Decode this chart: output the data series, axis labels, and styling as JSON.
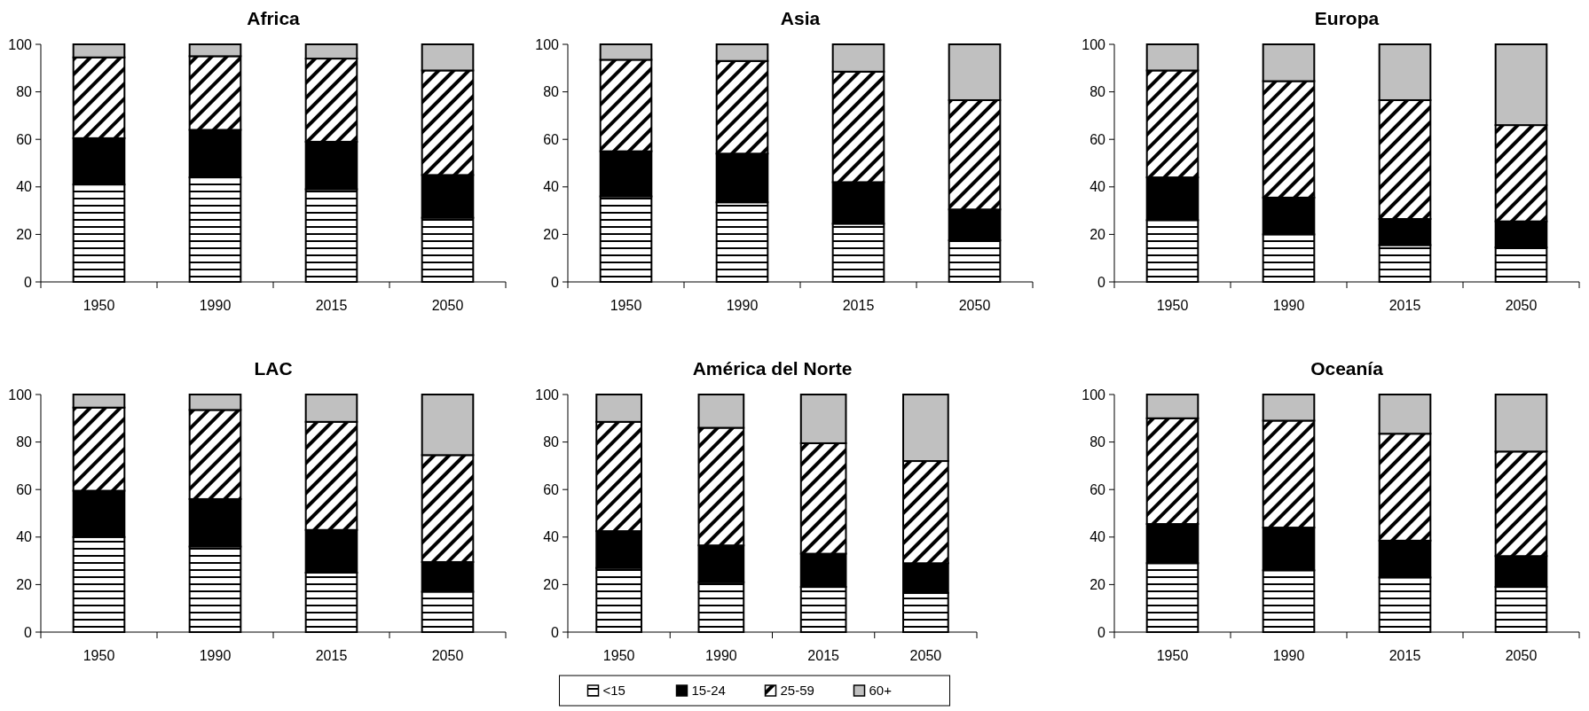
{
  "chart_data": [
    {
      "type": "bar",
      "title": "Africa",
      "stacked": true,
      "legend": "bottom",
      "categories": [
        "1950",
        "1990",
        "2015",
        "2050"
      ],
      "ylim": [
        0,
        100
      ],
      "yticks": [
        0,
        20,
        40,
        60,
        80,
        100
      ],
      "series": [
        {
          "name": "<15",
          "color": "#000000",
          "values": [
            41,
            44,
            39,
            27
          ]
        },
        {
          "name": "15-24",
          "color": "#000000",
          "values": [
            19.5,
            20,
            20,
            18
          ]
        },
        {
          "name": "25-59",
          "color": "#000000",
          "values": [
            34,
            31,
            35,
            44
          ]
        },
        {
          "name": "60+",
          "color": "#c0c0c0",
          "values": [
            5.5,
            5,
            6,
            11
          ]
        }
      ]
    },
    {
      "type": "bar",
      "title": "Asia",
      "stacked": true,
      "categories": [
        "1950",
        "1990",
        "2015",
        "2050"
      ],
      "ylim": [
        0,
        100
      ],
      "yticks": [
        0,
        20,
        40,
        60,
        80,
        100
      ],
      "series": [
        {
          "color": "#000000",
          "values": [
            36,
            33.5,
            24.5,
            17.5
          ]
        },
        {
          "color": "#000000",
          "values": [
            19,
            20.5,
            17.5,
            13
          ]
        },
        {
          "color": "#000000",
          "values": [
            38.5,
            39,
            46.5,
            46
          ]
        },
        {
          "color": "#c0c0c0",
          "values": [
            6.5,
            7,
            11.5,
            23.5
          ]
        }
      ]
    },
    {
      "type": "bar",
      "title": "Europa",
      "stacked": true,
      "categories": [
        "1950",
        "1990",
        "2015",
        "2050"
      ],
      "ylim": [
        0,
        100
      ],
      "yticks": [
        0,
        20,
        40,
        60,
        80,
        100
      ],
      "series": [
        {
          "color": "#000000",
          "values": [
            26,
            20,
            15.5,
            14.5
          ]
        },
        {
          "color": "#000000",
          "values": [
            18,
            15.5,
            11,
            11
          ]
        },
        {
          "color": "#000000",
          "values": [
            45,
            49,
            50,
            40.5
          ]
        },
        {
          "color": "#c0c0c0",
          "values": [
            11,
            15.5,
            23.5,
            34
          ]
        }
      ]
    },
    {
      "type": "bar",
      "title": "LAC",
      "stacked": true,
      "categories": [
        "1950",
        "1990",
        "2015",
        "2050"
      ],
      "ylim": [
        0,
        100
      ],
      "yticks": [
        0,
        20,
        40,
        60,
        80,
        100
      ],
      "series": [
        {
          "color": "#000000",
          "values": [
            40,
            36,
            25,
            17
          ]
        },
        {
          "color": "#000000",
          "values": [
            19.5,
            20,
            18,
            12.5
          ]
        },
        {
          "color": "#000000",
          "values": [
            35,
            37.5,
            45.5,
            45
          ]
        },
        {
          "color": "#c0c0c0",
          "values": [
            5.5,
            6.5,
            11.5,
            25.5
          ]
        }
      ]
    },
    {
      "type": "bar",
      "title": "América del Norte",
      "stacked": true,
      "categories": [
        "1950",
        "1990",
        "2015",
        "2050"
      ],
      "ylim": [
        0,
        100
      ],
      "yticks": [
        0,
        20,
        40,
        60,
        80,
        100
      ],
      "series": [
        {
          "color": "#000000",
          "values": [
            27,
            21,
            19,
            16.5
          ]
        },
        {
          "color": "#000000",
          "values": [
            15.5,
            15.5,
            14,
            12.5
          ]
        },
        {
          "color": "#000000",
          "values": [
            46,
            49.5,
            46.5,
            43
          ]
        },
        {
          "color": "#c0c0c0",
          "values": [
            11.5,
            14,
            20.5,
            28
          ]
        }
      ]
    },
    {
      "type": "bar",
      "title": "Oceanía",
      "stacked": true,
      "categories": [
        "1950",
        "1990",
        "2015",
        "2050"
      ],
      "ylim": [
        0,
        100
      ],
      "yticks": [
        0,
        20,
        40,
        60,
        80,
        100
      ],
      "series": [
        {
          "color": "#000000",
          "values": [
            29,
            26,
            23,
            19
          ]
        },
        {
          "color": "#000000",
          "values": [
            16.5,
            18,
            15.5,
            13
          ]
        },
        {
          "color": "#000000",
          "values": [
            44.5,
            45,
            45,
            44
          ]
        },
        {
          "color": "#c0c0c0",
          "values": [
            10,
            11,
            16.5,
            24
          ]
        }
      ]
    }
  ]
}
